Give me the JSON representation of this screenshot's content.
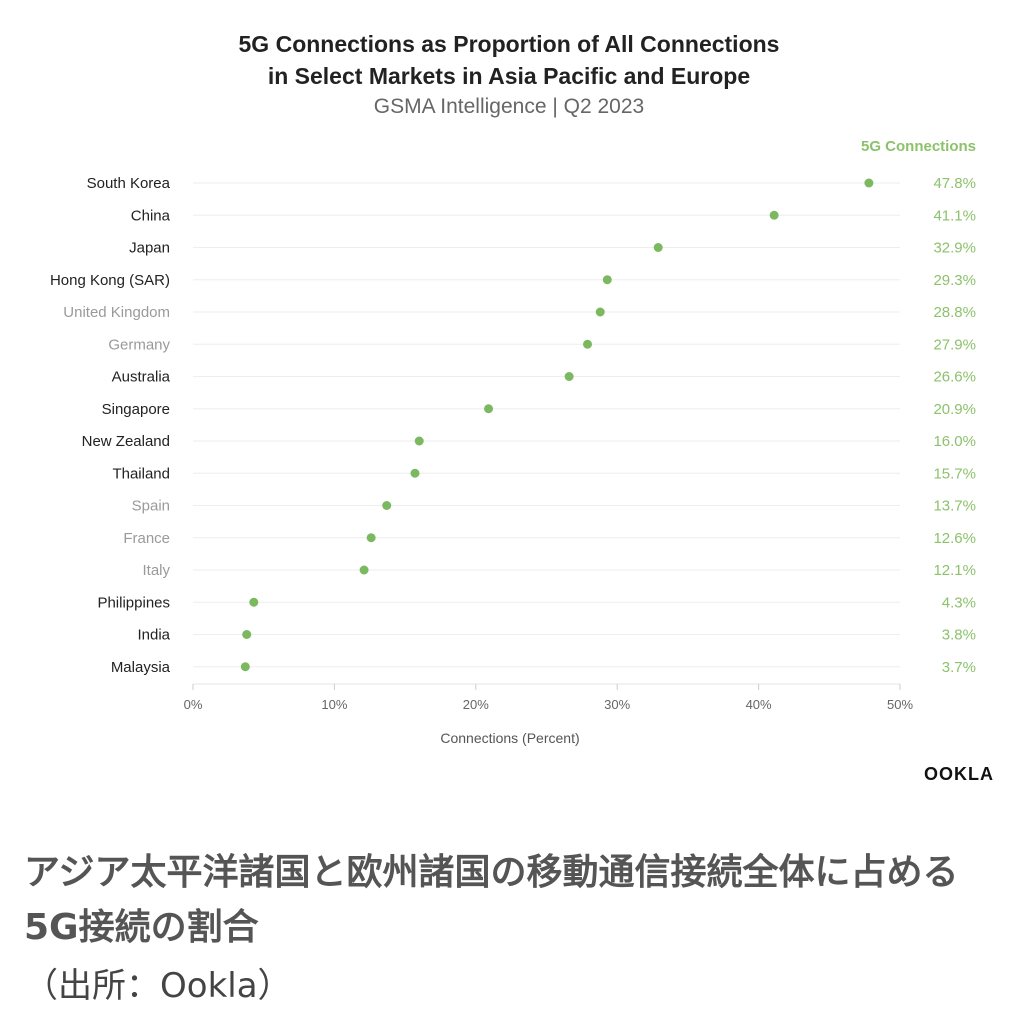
{
  "chart_data": {
    "type": "scatter",
    "title_lines": [
      "5G Connections as Proportion of All Connections",
      "in Select Markets in Asia Pacific and Europe"
    ],
    "subtitle": "GSMA Intelligence | Q2 2023",
    "xlabel": "Connections (Percent)",
    "value_column_header": "5G Connections",
    "xlim": [
      0,
      50
    ],
    "x_ticks": [
      "0%",
      "10%",
      "20%",
      "30%",
      "40%",
      "50%"
    ],
    "grid": true,
    "colors": {
      "point": "#7cb85f",
      "value_label": "#8cc26c",
      "asia_label": "#222222",
      "europe_label": "#9a9a9a",
      "gridline": "#eeeeee"
    },
    "points": [
      {
        "country": "South Korea",
        "value": 47.8,
        "label": "47.8%",
        "region": "asia"
      },
      {
        "country": "China",
        "value": 41.1,
        "label": "41.1%",
        "region": "asia"
      },
      {
        "country": "Japan",
        "value": 32.9,
        "label": "32.9%",
        "region": "asia"
      },
      {
        "country": "Hong Kong (SAR)",
        "value": 29.3,
        "label": "29.3%",
        "region": "asia"
      },
      {
        "country": "United Kingdom",
        "value": 28.8,
        "label": "28.8%",
        "region": "europe"
      },
      {
        "country": "Germany",
        "value": 27.9,
        "label": "27.9%",
        "region": "europe"
      },
      {
        "country": "Australia",
        "value": 26.6,
        "label": "26.6%",
        "region": "asia"
      },
      {
        "country": "Singapore",
        "value": 20.9,
        "label": "20.9%",
        "region": "asia"
      },
      {
        "country": "New Zealand",
        "value": 16.0,
        "label": "16.0%",
        "region": "asia"
      },
      {
        "country": "Thailand",
        "value": 15.7,
        "label": "15.7%",
        "region": "asia"
      },
      {
        "country": "Spain",
        "value": 13.7,
        "label": "13.7%",
        "region": "europe"
      },
      {
        "country": "France",
        "value": 12.6,
        "label": "12.6%",
        "region": "europe"
      },
      {
        "country": "Italy",
        "value": 12.1,
        "label": "12.1%",
        "region": "europe"
      },
      {
        "country": "Philippines",
        "value": 4.3,
        "label": "4.3%",
        "region": "asia"
      },
      {
        "country": "India",
        "value": 3.8,
        "label": "3.8%",
        "region": "asia"
      },
      {
        "country": "Malaysia",
        "value": 3.7,
        "label": "3.7%",
        "region": "asia"
      }
    ]
  },
  "logo_text": "OOKLA",
  "caption": "アジア太平洋諸国と欧州諸国の移動通信接続全体に占める5G接続の割合",
  "source": "（出所：Ookla）"
}
